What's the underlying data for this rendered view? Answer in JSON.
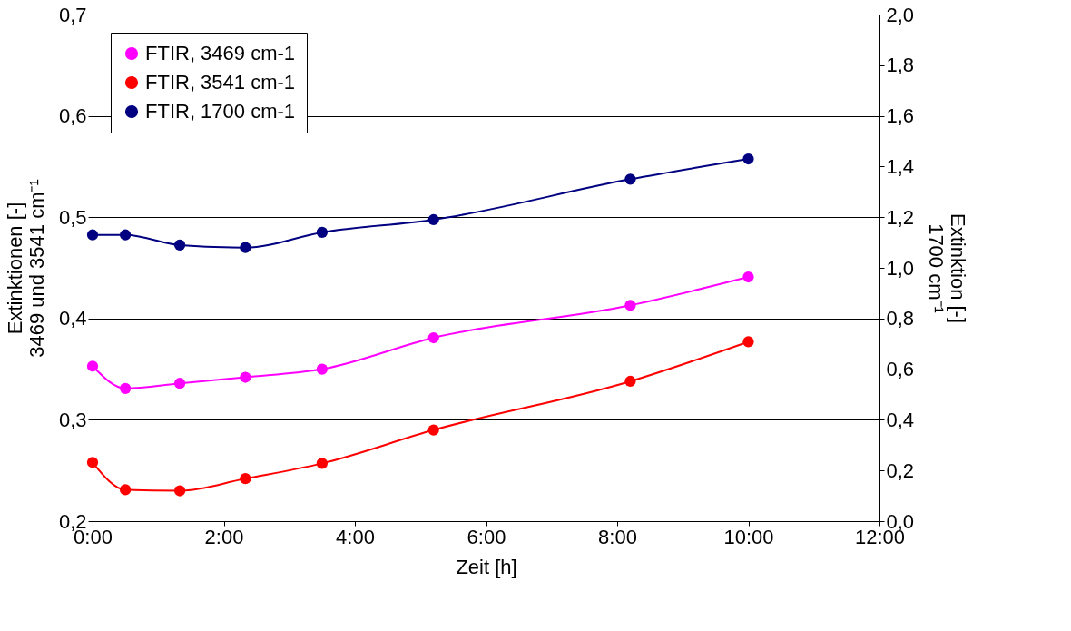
{
  "chart_data": {
    "type": "line",
    "xlabel": "Zeit  [h]",
    "ylabel": "Extinktionen [-]\n3469 und 3541 cm⁻¹",
    "y2label": "Extinktion [-]\n1700 cm⁻¹",
    "x": [
      0,
      0.5,
      1.33,
      2.33,
      3.5,
      5.2,
      8.2,
      10.0
    ],
    "series": [
      {
        "name": "FTIR, 3469 cm-1",
        "color": "#ff00ff",
        "values": [
          0.353,
          0.331,
          0.336,
          0.342,
          0.35,
          0.381,
          0.413,
          0.441
        ]
      },
      {
        "name": "FTIR, 3541 cm-1",
        "color": "#ff0000",
        "values": [
          0.258,
          0.231,
          0.23,
          0.242,
          0.257,
          0.29,
          0.338,
          0.377
        ]
      },
      {
        "name": "FTIR, 1700 cm-1",
        "color": "#000080",
        "axis": "y2",
        "values": [
          1.13,
          1.13,
          1.09,
          1.08,
          1.14,
          1.19,
          1.35,
          1.43
        ]
      }
    ],
    "xlim": [
      0,
      12
    ],
    "xticks": [
      {
        "value": 0,
        "label": "0:00"
      },
      {
        "value": 2,
        "label": "2:00"
      },
      {
        "value": 4,
        "label": "4:00"
      },
      {
        "value": 6,
        "label": "6:00"
      },
      {
        "value": 8,
        "label": "8:00"
      },
      {
        "value": 10,
        "label": "10:00"
      },
      {
        "value": 12,
        "label": "12:00"
      }
    ],
    "ylim": [
      0.2,
      0.7
    ],
    "yticks": [
      {
        "value": 0.2,
        "label": "0,2"
      },
      {
        "value": 0.3,
        "label": "0,3"
      },
      {
        "value": 0.4,
        "label": "0,4"
      },
      {
        "value": 0.5,
        "label": "0,5"
      },
      {
        "value": 0.6,
        "label": "0,6"
      },
      {
        "value": 0.7,
        "label": "0,7"
      }
    ],
    "y2lim": [
      0,
      2
    ],
    "y2ticks": [
      {
        "value": 0,
        "label": "0,0"
      },
      {
        "value": 0.2,
        "label": "0,2"
      },
      {
        "value": 0.4,
        "label": "0,4"
      },
      {
        "value": 0.6,
        "label": "0,6"
      },
      {
        "value": 0.8,
        "label": "0,8"
      },
      {
        "value": 1.0,
        "label": "1,0"
      },
      {
        "value": 1.2,
        "label": "1,2"
      },
      {
        "value": 1.4,
        "label": "1,4"
      },
      {
        "value": 1.6,
        "label": "1,6"
      },
      {
        "value": 1.8,
        "label": "1,8"
      },
      {
        "value": 2.0,
        "label": "2,0"
      }
    ],
    "grid": "y",
    "legend": "top left",
    "marker": "circle",
    "line_style": "solid"
  }
}
